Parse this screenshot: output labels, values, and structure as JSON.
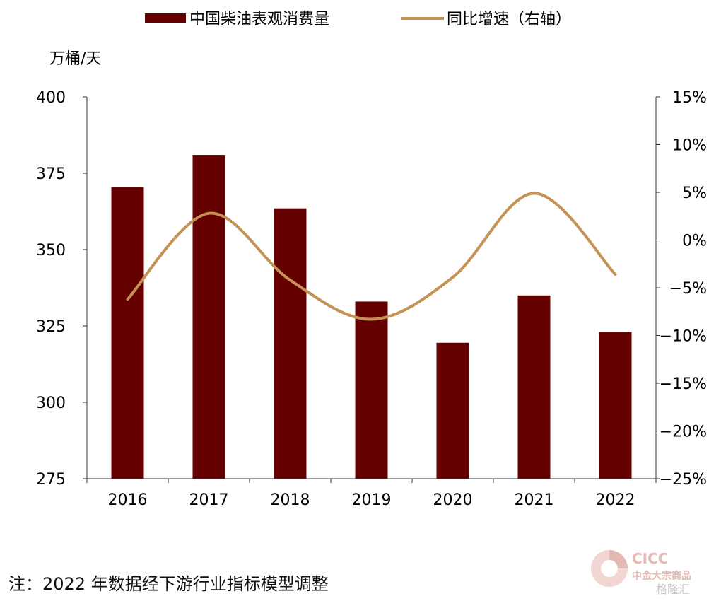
{
  "chart_data": {
    "type": "bar",
    "categories": [
      "2016",
      "2017",
      "2018",
      "2019",
      "2020",
      "2021",
      "2022"
    ],
    "series": [
      {
        "name": "中国柴油表观消费量",
        "type": "bar",
        "axis": "left",
        "color": "#640000",
        "values": [
          370.5,
          381,
          363.5,
          333,
          319.5,
          335,
          323
        ]
      },
      {
        "name": "同比增速（右轴）",
        "type": "line",
        "axis": "right",
        "color": "#c39254",
        "values": [
          -6.2,
          2.8,
          -4.2,
          -8.3,
          -3.9,
          4.9,
          -3.6
        ]
      }
    ],
    "left_axis": {
      "label": "万桶/天",
      "min": 275,
      "max": 400,
      "ticks": [
        "275",
        "300",
        "325",
        "350",
        "375",
        "400"
      ]
    },
    "right_axis": {
      "min": -25,
      "max": 15,
      "ticks": [
        "-25%",
        "-20%",
        "-15%",
        "-10%",
        "-5%",
        "0%",
        "5%",
        "10%",
        "15%"
      ]
    },
    "legend_position": "top-center"
  },
  "note": "注：2022 年数据经下游行业指标模型调整",
  "watermark": {
    "brand": "CICC",
    "brand_cn": "中金大宗商品",
    "site": "格隆汇"
  }
}
